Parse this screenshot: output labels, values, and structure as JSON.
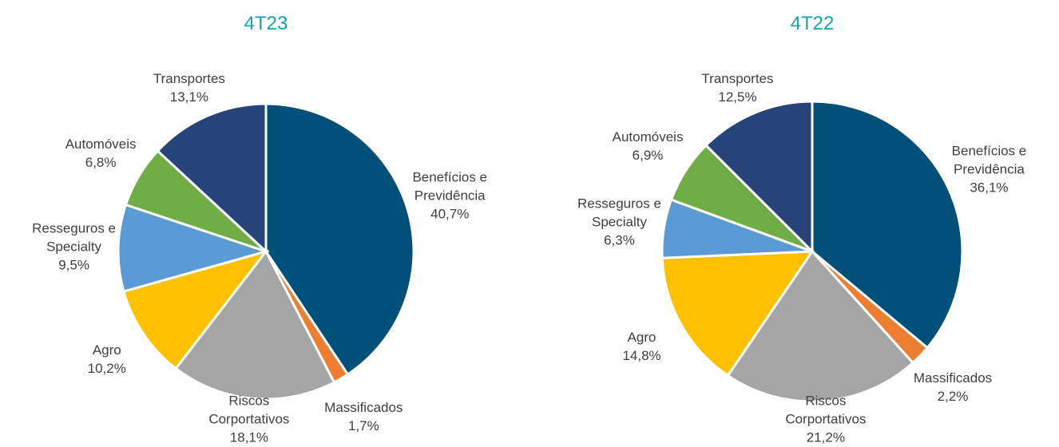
{
  "chart_data": [
    {
      "type": "pie",
      "title": "4T23",
      "categories": [
        "Benefícios e Previdência",
        "Massificados",
        "Riscos Corportativos",
        "Agro",
        "Resseguros e Specialty",
        "Automóveis",
        "Transportes"
      ],
      "values": [
        40.7,
        1.7,
        18.1,
        10.2,
        9.5,
        6.8,
        13.1
      ],
      "value_labels": [
        "40,7%",
        "1,7%",
        "18,1%",
        "10,2%",
        "9,5%",
        "6,8%",
        "13,1%"
      ],
      "colors": [
        "#00507a",
        "#ed7d31",
        "#a5a5a5",
        "#ffc000",
        "#5b9bd5",
        "#70ad47",
        "#264478"
      ]
    },
    {
      "type": "pie",
      "title": "4T22",
      "categories": [
        "Benefícios e Previdência",
        "Massificados",
        "Riscos Corportativos",
        "Agro",
        "Resseguros e Specialty",
        "Automóveis",
        "Transportes"
      ],
      "values": [
        36.1,
        2.2,
        21.2,
        14.8,
        6.3,
        6.9,
        12.5
      ],
      "value_labels": [
        "36,1%",
        "2,2%",
        "21,2%",
        "14,8%",
        "6,3%",
        "6,9%",
        "12,5%"
      ],
      "colors": [
        "#00507a",
        "#ed7d31",
        "#a5a5a5",
        "#ffc000",
        "#5b9bd5",
        "#70ad47",
        "#264478"
      ]
    }
  ]
}
